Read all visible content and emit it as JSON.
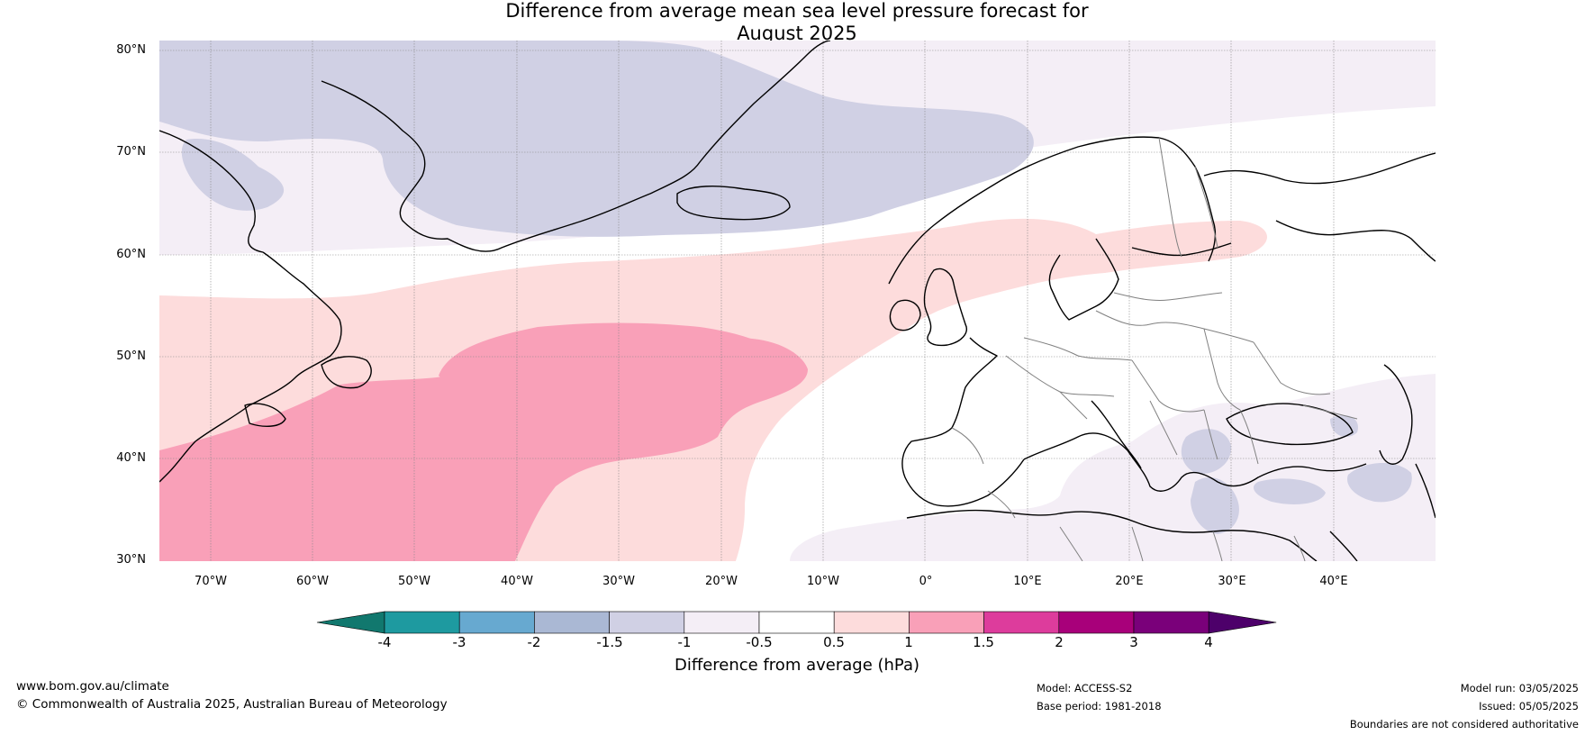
{
  "title": {
    "line1": "Difference from average mean sea level pressure forecast for",
    "line2": "August 2025"
  },
  "map": {
    "latitude_labels": [
      "80°N",
      "70°N",
      "60°N",
      "50°N",
      "40°N",
      "30°N"
    ],
    "longitude_labels": [
      "70°W",
      "60°W",
      "50°W",
      "40°W",
      "30°W",
      "20°W",
      "10°W",
      "0°",
      "10°E",
      "20°E",
      "30°E",
      "40°E"
    ],
    "extent": {
      "lon_min": -75,
      "lon_max": 50,
      "lat_min": 30,
      "lat_max": 81
    },
    "features": [
      "coastlines",
      "country-borders",
      "graticule",
      "pressure-anomaly-shading"
    ]
  },
  "colorbar": {
    "ticks": [
      "-4",
      "-3",
      "-2",
      "-1.5",
      "-1",
      "-0.5",
      "0.5",
      "1",
      "1.5",
      "2",
      "3",
      "4"
    ],
    "colors": [
      "#11786e",
      "#1e9aa0",
      "#67a9d0",
      "#aab8d4",
      "#d0d0e4",
      "#f4eef6",
      "#ffffff",
      "#fddcdc",
      "#f9a0b8",
      "#dd3c9c",
      "#a8007a",
      "#7a007a",
      "#4d006a"
    ],
    "label": "Difference from average (hPa)"
  },
  "footer": {
    "website": "www.bom.gov.au/climate",
    "copyright": "© Commonwealth of Australia 2025, Australian Bureau of Meteorology",
    "model": "Model: ACCESS-S2",
    "base_period": "Base period: 1981-2018",
    "model_run": "Model run: 03/05/2025",
    "issued": "Issued: 05/05/2025",
    "disclaimer": "Boundaries are not considered authoritative"
  }
}
